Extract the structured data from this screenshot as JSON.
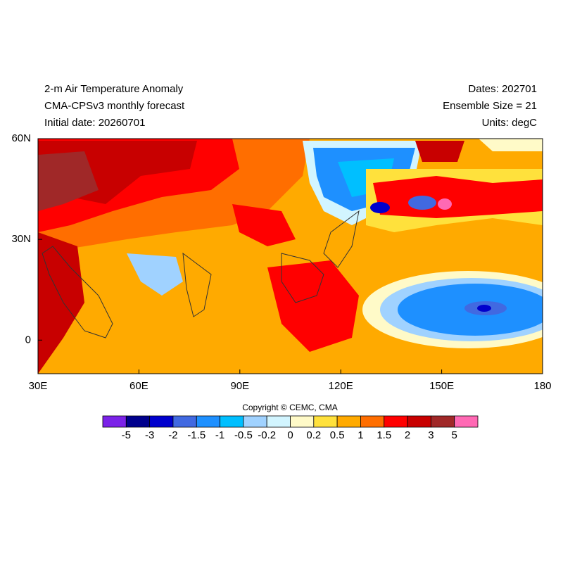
{
  "header": {
    "left": [
      "2-m Air Temperature Anomaly",
      "CMA-CPSv3 monthly forecast",
      "Initial date: 20260701"
    ],
    "right": [
      "Dates: 202701",
      "Ensemble Size = 21",
      "Units: degC"
    ]
  },
  "map": {
    "xlim": [
      30,
      180
    ],
    "ylim": [
      -10,
      60
    ],
    "xticks": [
      {
        "value": 30,
        "label": "30E"
      },
      {
        "value": 60,
        "label": "60E"
      },
      {
        "value": 90,
        "label": "90E"
      },
      {
        "value": 120,
        "label": "120E"
      },
      {
        "value": 150,
        "label": "150E"
      },
      {
        "value": 180,
        "label": "180"
      }
    ],
    "yticks": [
      {
        "value": 60,
        "label": "60N"
      },
      {
        "value": 30,
        "label": "30N"
      },
      {
        "value": 0,
        "label": "0"
      }
    ]
  },
  "copyright": "Copyright © CEMC, CMA",
  "colorbar": {
    "colors": [
      "#7b22e8",
      "#00008c",
      "#0000cd",
      "#4169e1",
      "#1e90ff",
      "#00bfff",
      "#a0d2ff",
      "#d2f5ff",
      "#fffac8",
      "#ffe13c",
      "#ffaa00",
      "#ff6e00",
      "#ff0000",
      "#c80000",
      "#a02828",
      "#ff69b4"
    ],
    "levels": [
      -5,
      -3,
      -2,
      -1.5,
      -1,
      -0.5,
      -0.2,
      0,
      0.2,
      0.5,
      1,
      1.5,
      2,
      3,
      5
    ]
  }
}
